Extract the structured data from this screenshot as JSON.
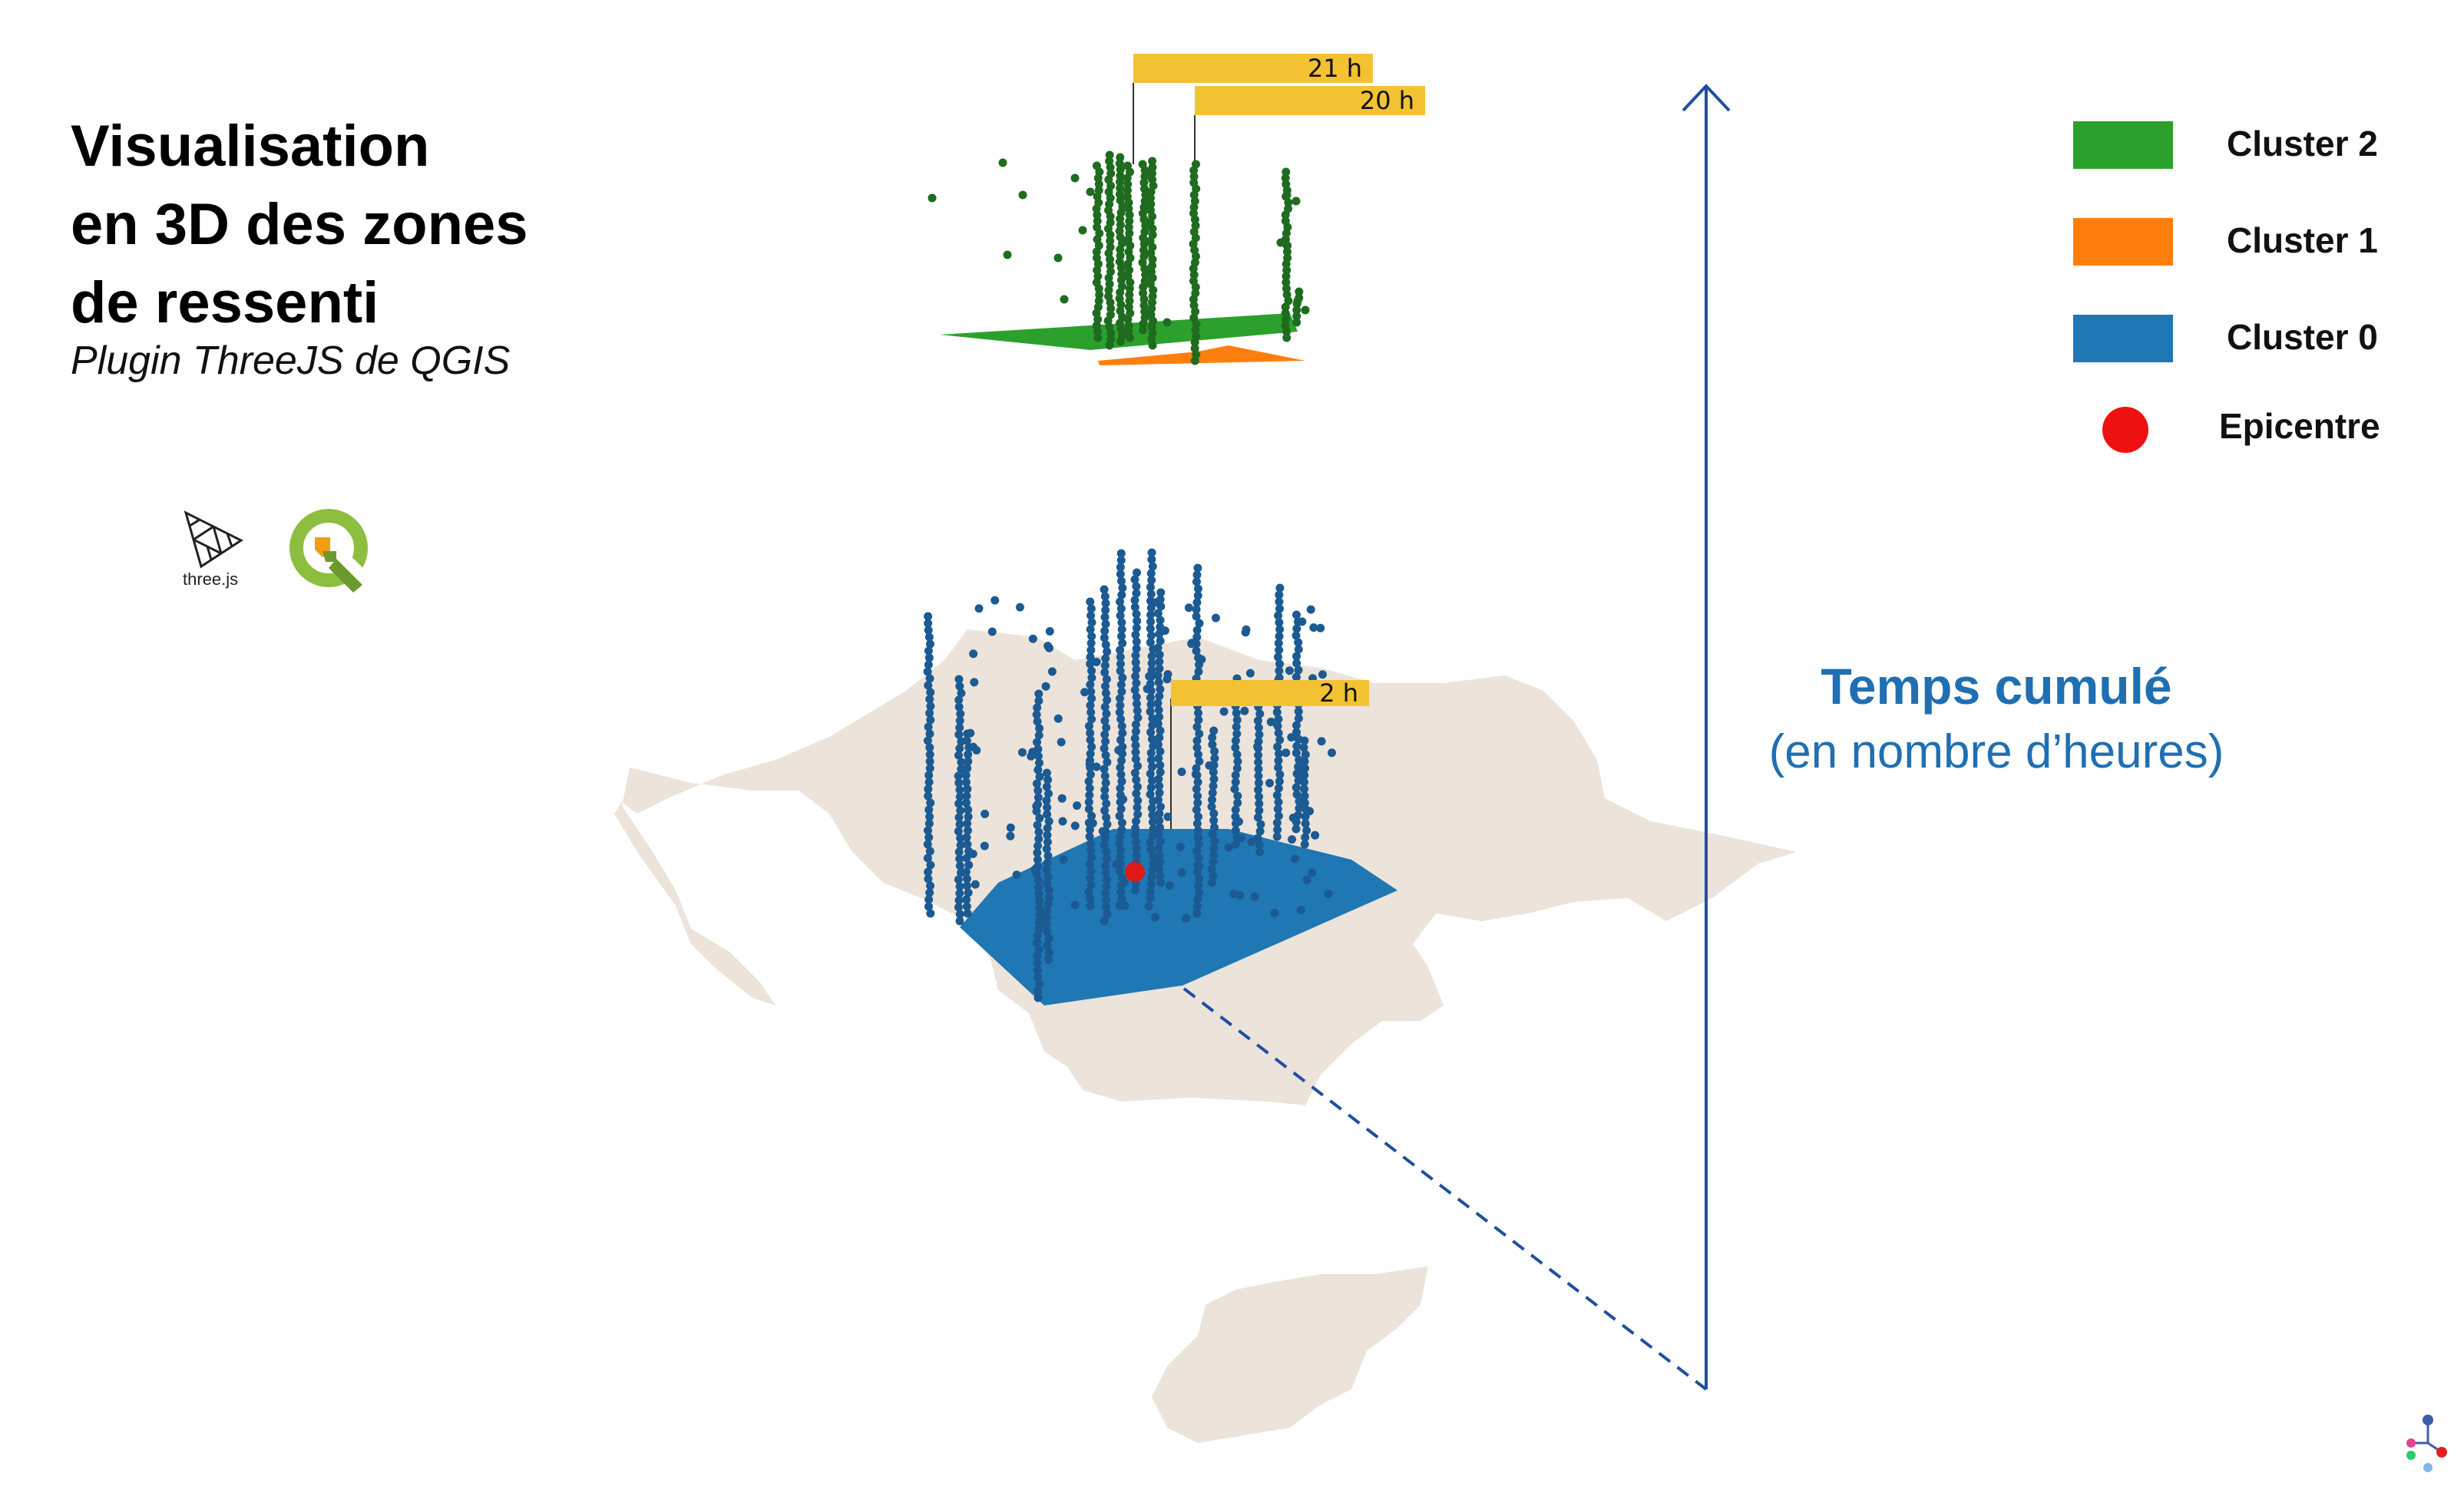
{
  "title": {
    "line1": "Visualisation",
    "line2": "en 3D des zones",
    "line3": "de ressenti"
  },
  "subtitle": "Plugin ThreeJS de QGIS",
  "logos": {
    "threejs_caption": "three.js",
    "threejs_icon": "threejs-logo-icon",
    "qgis_icon": "qgis-logo-icon",
    "corner_icon": "network-dots-icon"
  },
  "legend": [
    {
      "label": "Cluster 2",
      "color": "#2ca02c",
      "shape": "rect"
    },
    {
      "label": "Cluster 1",
      "color": "#ff7f0e",
      "shape": "rect"
    },
    {
      "label": "Cluster 0",
      "color": "#1f77b4",
      "shape": "rect"
    },
    {
      "label": "Epicentre",
      "color": "#ee1111",
      "shape": "circle"
    }
  ],
  "axis": {
    "title": "Temps cumulé",
    "subtitle": "(en nombre d’heures)",
    "color": "#1f4fa0"
  },
  "time_labels": {
    "label_21h": "21 h",
    "label_20h": "20 h",
    "label_2h": "2 h"
  },
  "colors": {
    "map": "#ece3da",
    "label_bg": "#f2c233",
    "cluster0_dots": "#1b5a92",
    "cluster2_dots": "#1f6b1f"
  }
}
